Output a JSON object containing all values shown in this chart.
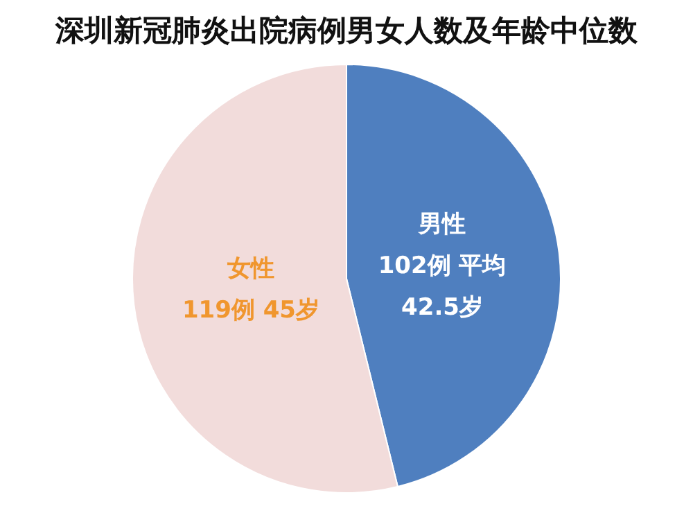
{
  "chart_data": {
    "type": "pie",
    "title": "深圳新冠肺炎出院病例男女人数及年龄中位数",
    "categories": [
      "男性",
      "女性"
    ],
    "values": [
      102,
      119
    ],
    "colors": [
      "#4f7fbf",
      "#f2dcdb"
    ],
    "value_labels": [
      "102例 平均\n42.5岁",
      "119例 45岁"
    ],
    "legend": false
  }
}
